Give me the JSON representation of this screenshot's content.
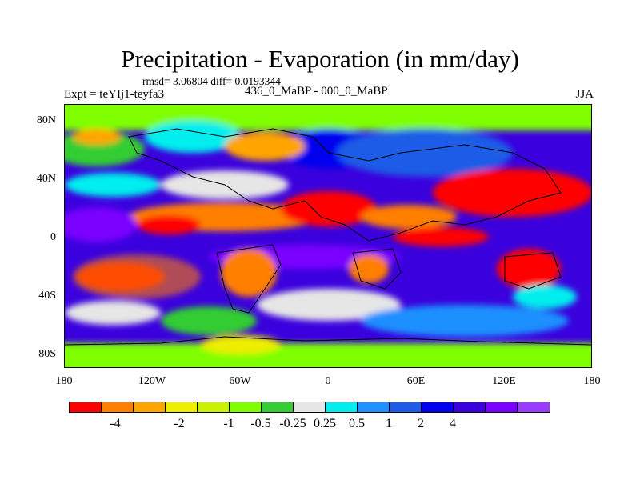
{
  "title": "Precipitation - Evaporation (in mm/day)",
  "stats": "rmsd= 3.06804  diff= 0.0193344",
  "experiment": "Expt = teYIj1-teyfa3",
  "subtitle": "436_0_MaBP - 000_0_MaBP",
  "season": "JJA",
  "map": {
    "projection": "cylindrical equidistant",
    "lon_range": [
      -180,
      180
    ],
    "lat_range": [
      -90,
      90
    ],
    "y_ticks": [
      {
        "label": "80N",
        "lat": 80
      },
      {
        "label": "40N",
        "lat": 40
      },
      {
        "label": "0",
        "lat": 0
      },
      {
        "label": "40S",
        "lat": -40
      },
      {
        "label": "80S",
        "lat": -80
      }
    ],
    "x_ticks": [
      {
        "label": "180",
        "lon": -180
      },
      {
        "label": "120W",
        "lon": -120
      },
      {
        "label": "60W",
        "lon": -60
      },
      {
        "label": "0",
        "lon": 0
      },
      {
        "label": "60E",
        "lon": 60
      },
      {
        "label": "120E",
        "lon": 120
      },
      {
        "label": "180",
        "lon": 180
      }
    ]
  },
  "colorbar": {
    "colors": [
      "#ff0000",
      "#ff7f00",
      "#ffa500",
      "#eeee00",
      "#c8f000",
      "#7fff00",
      "#32cd32",
      "#e6e6e6",
      "#00eeee",
      "#1e90ff",
      "#1c5ce6",
      "#0000ee",
      "#3a00dd",
      "#7a00ff",
      "#9a3cff"
    ],
    "levels": [
      "-4",
      "-2",
      "-1",
      "-0.5",
      "-0.25",
      "0.25",
      "0.5",
      "1",
      "2",
      "4"
    ]
  }
}
